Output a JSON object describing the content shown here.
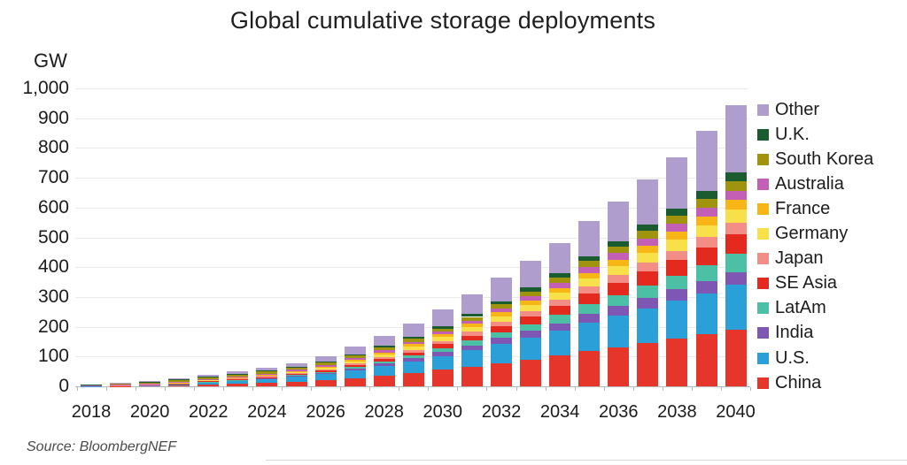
{
  "chart_data": {
    "type": "bar",
    "stacked": true,
    "title": "Global cumulative storage deployments",
    "unit_label": "GW",
    "source": "Source: BloombergNEF",
    "years": [
      2018,
      2019,
      2020,
      2021,
      2022,
      2023,
      2024,
      2025,
      2026,
      2027,
      2028,
      2029,
      2030,
      2031,
      2032,
      2033,
      2034,
      2035,
      2036,
      2037,
      2038,
      2039,
      2040
    ],
    "x_tick_labels": [
      "2018",
      "2020",
      "2022",
      "2024",
      "2026",
      "2028",
      "2030",
      "2032",
      "2034",
      "2036",
      "2038",
      "2040"
    ],
    "ylim": [
      0,
      1000
    ],
    "ytick_step": 100,
    "grid": true,
    "legend_position": "right",
    "legend_order_top_to_bottom": [
      "Other",
      "U.K.",
      "South Korea",
      "Australia",
      "France",
      "Germany",
      "Japan",
      "SE Asia",
      "LatAm",
      "India",
      "U.S.",
      "China"
    ],
    "series": [
      {
        "name": "China",
        "color": "#e6352b",
        "values": [
          0.5,
          1,
          1.8,
          3.5,
          6.5,
          9,
          12,
          16,
          21,
          28,
          36,
          45,
          55,
          66,
          78,
          90,
          103,
          118,
          131,
          145,
          159,
          174,
          190
        ]
      },
      {
        "name": "U.S.",
        "color": "#2b9fd8",
        "values": [
          0.8,
          1.3,
          2.2,
          4.5,
          7.5,
          10,
          13,
          16,
          20,
          26,
          32,
          39,
          47,
          56,
          65,
          74,
          84,
          96,
          106,
          117,
          128,
          139,
          150
        ]
      },
      {
        "name": "India",
        "color": "#7e57b5",
        "values": [
          0.1,
          0.2,
          0.4,
          0.8,
          1.3,
          1.8,
          2.5,
          3.4,
          4.5,
          6,
          8,
          10,
          13,
          16,
          19,
          22,
          25,
          29,
          32,
          35,
          38,
          40,
          42
        ]
      },
      {
        "name": "LatAm",
        "color": "#4cc0a4",
        "values": [
          0.1,
          0.2,
          0.3,
          0.5,
          0.8,
          1.2,
          1.7,
          2.4,
          3.4,
          5,
          7,
          9,
          12,
          15,
          19,
          23,
          27,
          32,
          37,
          42,
          47,
          54,
          62
        ]
      },
      {
        "name": "SE Asia",
        "color": "#e42a1e",
        "values": [
          0.1,
          0.2,
          0.3,
          0.5,
          0.8,
          1.2,
          1.8,
          2.6,
          3.7,
          5.5,
          8,
          10.5,
          14,
          17.5,
          21.5,
          26,
          30.5,
          36,
          41,
          47,
          52,
          59,
          66
        ]
      },
      {
        "name": "Japan",
        "color": "#f28e86",
        "values": [
          0.9,
          1.3,
          1.7,
          2.2,
          2.8,
          3.3,
          3.8,
          4.4,
          5.2,
          6.5,
          8,
          9.5,
          11,
          13,
          15,
          17.5,
          20,
          23,
          25.5,
          28.5,
          31.5,
          35.5,
          40
        ]
      },
      {
        "name": "Germany",
        "color": "#f8e04b",
        "values": [
          0.5,
          0.7,
          0.9,
          1.3,
          1.8,
          2.3,
          3,
          4,
          5.3,
          7,
          9,
          11,
          13,
          15.5,
          18,
          21,
          24,
          27.5,
          30.5,
          33.5,
          36.5,
          40,
          43
        ]
      },
      {
        "name": "France",
        "color": "#f8b616",
        "values": [
          0.1,
          0.2,
          0.3,
          0.5,
          0.8,
          1.2,
          1.7,
          2.4,
          3.3,
          4.5,
          6,
          7.5,
          9,
          11,
          13,
          15,
          17,
          19.5,
          22,
          24.5,
          27,
          29.5,
          32
        ]
      },
      {
        "name": "Australia",
        "color": "#c35fb4",
        "values": [
          0.4,
          0.7,
          1.1,
          1.7,
          2.3,
          2.8,
          3.3,
          3.9,
          4.6,
          5.5,
          6.5,
          7.5,
          9,
          11,
          13,
          15,
          17,
          19.5,
          22,
          24.5,
          27,
          29.5,
          32
        ]
      },
      {
        "name": "South Korea",
        "color": "#a0940f",
        "values": [
          3,
          4.2,
          5,
          5.5,
          6,
          6.4,
          6.8,
          7.3,
          7.9,
          8.5,
          9,
          10,
          11,
          12,
          13.5,
          15,
          17,
          19.5,
          21.5,
          24,
          26.5,
          29,
          32
        ]
      },
      {
        "name": "U.K.",
        "color": "#1a5c30",
        "values": [
          0.4,
          0.7,
          1,
          1.5,
          2,
          2.4,
          2.9,
          3.5,
          4.2,
          5,
          6,
          7,
          8,
          9.5,
          11,
          12.5,
          14,
          16.5,
          18.5,
          21,
          23,
          26,
          29
        ]
      },
      {
        "name": "Other",
        "color": "#af9dce",
        "values": [
          0.1,
          1.3,
          3,
          5.5,
          7.4,
          8.4,
          9.5,
          12.1,
          16.9,
          25.5,
          34.5,
          46,
          56,
          67.5,
          79,
          89,
          101.5,
          118.5,
          133,
          153,
          174.5,
          202.5,
          227
        ]
      }
    ]
  }
}
